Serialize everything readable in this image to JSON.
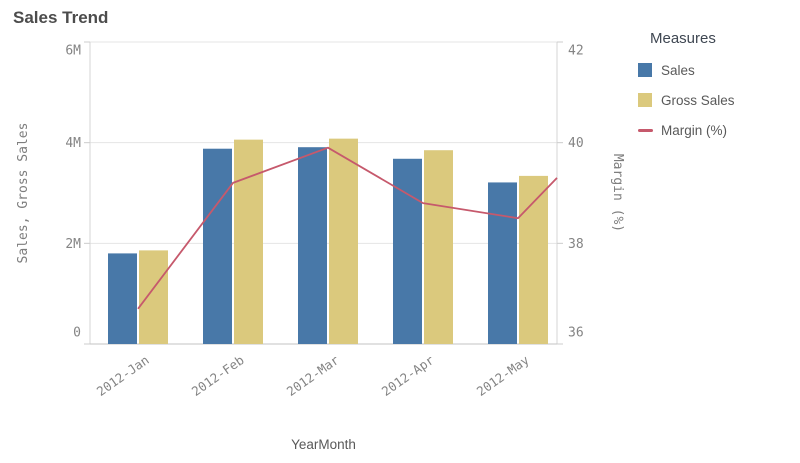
{
  "title": "Sales Trend",
  "legend": {
    "title": "Measures",
    "items": [
      {
        "label": "Sales",
        "swatch": "square",
        "color": "#4878a8"
      },
      {
        "label": "Gross Sales",
        "swatch": "square",
        "color": "#dbc97d"
      },
      {
        "label": "Margin (%)",
        "swatch": "line",
        "color": "#c6596c"
      }
    ]
  },
  "chart_data": {
    "type": "combo (grouped bars + line)",
    "title": "Sales Trend",
    "categories": [
      "2012-Jan",
      "2012-Feb",
      "2012-Mar",
      "2012-Apr",
      "2012-May"
    ],
    "series": [
      {
        "name": "Sales",
        "type": "bar",
        "axis": "left",
        "color": "#4878a8",
        "values_millions": [
          1.8,
          3.88,
          3.91,
          3.68,
          3.21
        ]
      },
      {
        "name": "Gross Sales",
        "type": "bar",
        "axis": "left",
        "color": "#dbc97d",
        "values_millions": [
          1.86,
          4.06,
          4.08,
          3.85,
          3.34
        ]
      },
      {
        "name": "Margin (%)",
        "type": "line",
        "axis": "right",
        "color": "#c6596c",
        "values": [
          36.7,
          39.2,
          39.9,
          38.8,
          38.5
        ],
        "line_extends_to_right_plot_edge_value": 39.3
      }
    ],
    "x_axis": {
      "title": "YearMonth"
    },
    "left_axis": {
      "title": "Sales, Gross Sales",
      "range_millions": [
        0,
        6
      ],
      "ticks": [
        {
          "label": "0",
          "value": 0
        },
        {
          "label": "2M",
          "value": 2
        },
        {
          "label": "4M",
          "value": 4
        },
        {
          "label": "6M",
          "value": 6
        }
      ]
    },
    "right_axis": {
      "title": "Margin (%)",
      "range": [
        36,
        42
      ],
      "ticks": [
        {
          "label": "36",
          "value": 36
        },
        {
          "label": "38",
          "value": 38
        },
        {
          "label": "40",
          "value": 40
        },
        {
          "label": "42",
          "value": 42
        }
      ]
    },
    "grid": true,
    "legend_position": "right",
    "legend_title": "Measures"
  },
  "colors": {
    "grid_line": "#e4e4e4",
    "axis_line": "#d6d6d6",
    "baseline": "#c3c3c3",
    "tick_mark": "#cccccc",
    "tick_text": "#848484",
    "axis_title_text": "#7e7e7e",
    "x_title_text": "#595959",
    "title_text": "#4c4c4c"
  }
}
